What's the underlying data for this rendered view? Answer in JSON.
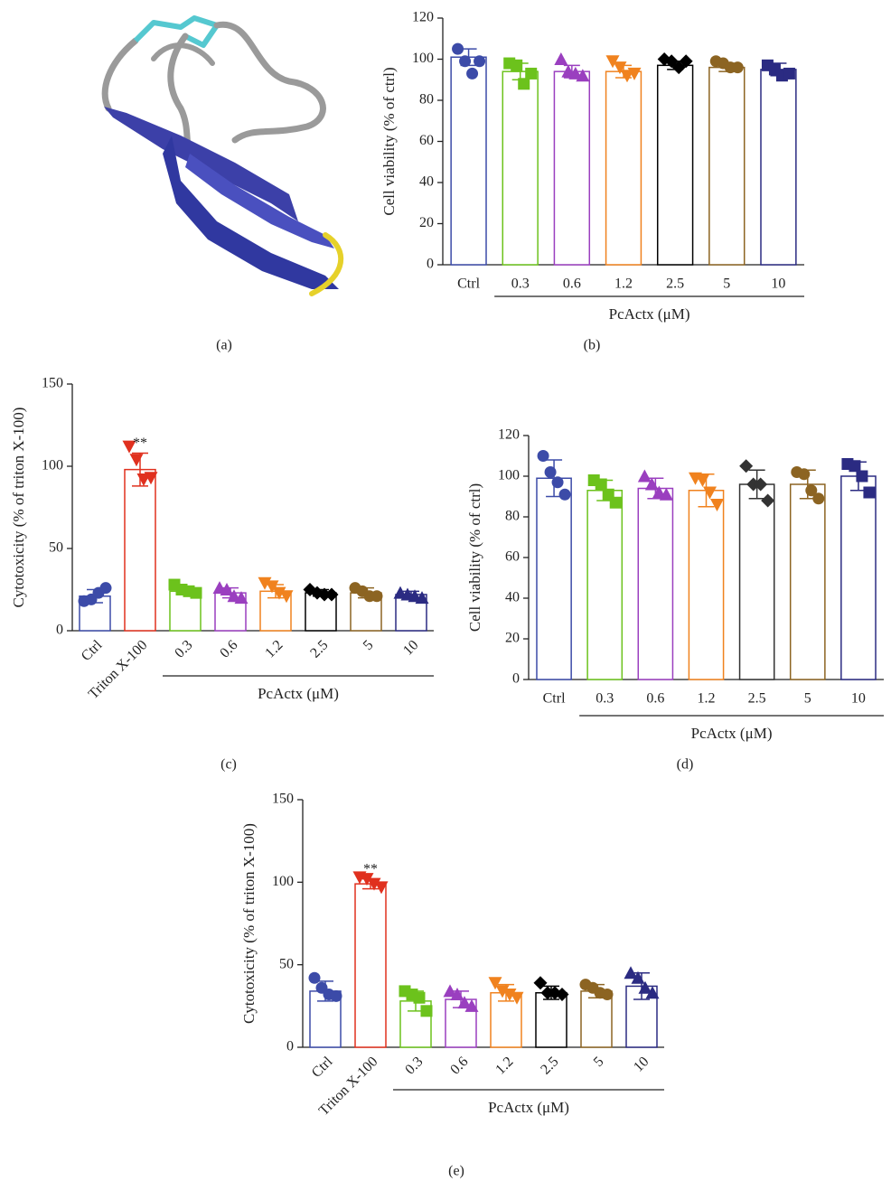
{
  "panel_a": {
    "label": "(a)"
  },
  "chart_data": [
    {
      "type": "bar",
      "panel_label": "(b)",
      "ylabel": "Cell viability (% of ctrl)",
      "categories": [
        "Ctrl",
        "0.3",
        "0.6",
        "1.2",
        "2.5",
        "5",
        "10"
      ],
      "values": [
        101,
        94,
        94,
        94,
        97,
        96,
        95
      ],
      "errors": [
        4,
        4,
        3,
        3,
        2,
        2,
        3
      ],
      "points": [
        [
          105,
          99,
          93,
          99
        ],
        [
          98,
          97,
          88,
          93
        ],
        [
          100,
          94,
          93,
          92
        ],
        [
          99,
          96,
          92,
          93
        ],
        [
          100,
          99,
          96,
          99
        ],
        [
          99,
          98,
          96,
          96
        ],
        [
          97,
          95,
          92,
          93
        ]
      ],
      "colors": [
        "#3c4ba8",
        "#6cc21c",
        "#9a3fbf",
        "#f0821e",
        "#000000",
        "#8c6422",
        "#2b2b82"
      ],
      "markers": [
        "circle",
        "square",
        "triangle",
        "inv-triangle",
        "diamond",
        "circle",
        "square"
      ],
      "group": {
        "label": "PcActx (μM)",
        "from": "0.3",
        "to": "10"
      },
      "rotate_x_labels": false,
      "ylim": [
        0,
        120
      ],
      "yticks": [
        0,
        20,
        40,
        60,
        80,
        100,
        120
      ]
    },
    {
      "type": "bar",
      "panel_label": "(c)",
      "ylabel": "Cytotoxicity (% of triton X-100)",
      "categories": [
        "Ctrl",
        "Triton X-100",
        "0.3",
        "0.6",
        "1.2",
        "2.5",
        "5",
        "10"
      ],
      "values": [
        21,
        98,
        24,
        23,
        24,
        23,
        23,
        22
      ],
      "errors": [
        4,
        10,
        2,
        3,
        4,
        2,
        3,
        2
      ],
      "points": [
        [
          18,
          19,
          23,
          26
        ],
        [
          112,
          104,
          92,
          93
        ],
        [
          28,
          25,
          24,
          23
        ],
        [
          26,
          25,
          21,
          20
        ],
        [
          29,
          27,
          23,
          21
        ],
        [
          25,
          23,
          22,
          22
        ],
        [
          26,
          24,
          21,
          21
        ],
        [
          23,
          22,
          21,
          20
        ]
      ],
      "colors": [
        "#3c4ba8",
        "#e0301e",
        "#6cc21c",
        "#9a3fbf",
        "#f0821e",
        "#000000",
        "#8c6422",
        "#2b2b82"
      ],
      "markers": [
        "circle",
        "inv-triangle",
        "square",
        "triangle",
        "inv-triangle",
        "diamond",
        "circle",
        "triangle"
      ],
      "annotations": [
        {
          "text": "**",
          "category": "Triton X-100"
        }
      ],
      "group": {
        "label": "PcActx (μM)",
        "from": "0.3",
        "to": "10"
      },
      "rotate_x_labels": true,
      "ylim": [
        0,
        150
      ],
      "yticks": [
        0,
        50,
        100,
        150
      ]
    },
    {
      "type": "bar",
      "panel_label": "(d)",
      "ylabel": "Cell viability (% of ctrl)",
      "categories": [
        "Ctrl",
        "0.3",
        "0.6",
        "1.2",
        "2.5",
        "5",
        "10"
      ],
      "values": [
        99,
        93,
        94,
        93,
        96,
        96,
        100
      ],
      "errors": [
        9,
        5,
        5,
        8,
        7,
        7,
        7
      ],
      "points": [
        [
          110,
          102,
          97,
          91
        ],
        [
          98,
          96,
          91,
          87
        ],
        [
          100,
          96,
          92,
          91
        ],
        [
          99,
          98,
          92,
          86
        ],
        [
          105,
          96,
          96,
          88
        ],
        [
          102,
          101,
          93,
          89
        ],
        [
          106,
          105,
          100,
          92
        ]
      ],
      "colors": [
        "#3c4ba8",
        "#6cc21c",
        "#9a3fbf",
        "#f0821e",
        "#333333",
        "#8c6422",
        "#2b2b82"
      ],
      "markers": [
        "circle",
        "square",
        "triangle",
        "inv-triangle",
        "diamond",
        "circle",
        "square"
      ],
      "group": {
        "label": "PcActx (μM)",
        "from": "0.3",
        "to": "10"
      },
      "rotate_x_labels": false,
      "ylim": [
        0,
        120
      ],
      "yticks": [
        0,
        20,
        40,
        60,
        80,
        100,
        120
      ]
    },
    {
      "type": "bar",
      "panel_label": "(e)",
      "ylabel": "Cytotoxicity (% of triton X-100)",
      "categories": [
        "Ctrl",
        "Triton X-100",
        "0.3",
        "0.6",
        "1.2",
        "2.5",
        "5",
        "10"
      ],
      "values": [
        34,
        99,
        28,
        29,
        33,
        33,
        34,
        37
      ],
      "errors": [
        6,
        3,
        6,
        5,
        5,
        4,
        4,
        8
      ],
      "points": [
        [
          42,
          36,
          32,
          31
        ],
        [
          103,
          102,
          99,
          97
        ],
        [
          34,
          32,
          30,
          22
        ],
        [
          34,
          32,
          27,
          25
        ],
        [
          39,
          34,
          32,
          30
        ],
        [
          39,
          33,
          33,
          32
        ],
        [
          38,
          36,
          33,
          32
        ],
        [
          45,
          42,
          36,
          33
        ]
      ],
      "colors": [
        "#3c4ba8",
        "#e0301e",
        "#6cc21c",
        "#9a3fbf",
        "#f0821e",
        "#000000",
        "#8c6422",
        "#2b2b82"
      ],
      "markers": [
        "circle",
        "inv-triangle",
        "square",
        "triangle",
        "inv-triangle",
        "diamond",
        "circle",
        "triangle"
      ],
      "annotations": [
        {
          "text": "**",
          "category": "Triton X-100"
        }
      ],
      "group": {
        "label": "PcActx (μM)",
        "from": "0.3",
        "to": "10"
      },
      "rotate_x_labels": true,
      "ylim": [
        0,
        150
      ],
      "yticks": [
        0,
        50,
        100,
        150
      ]
    }
  ]
}
